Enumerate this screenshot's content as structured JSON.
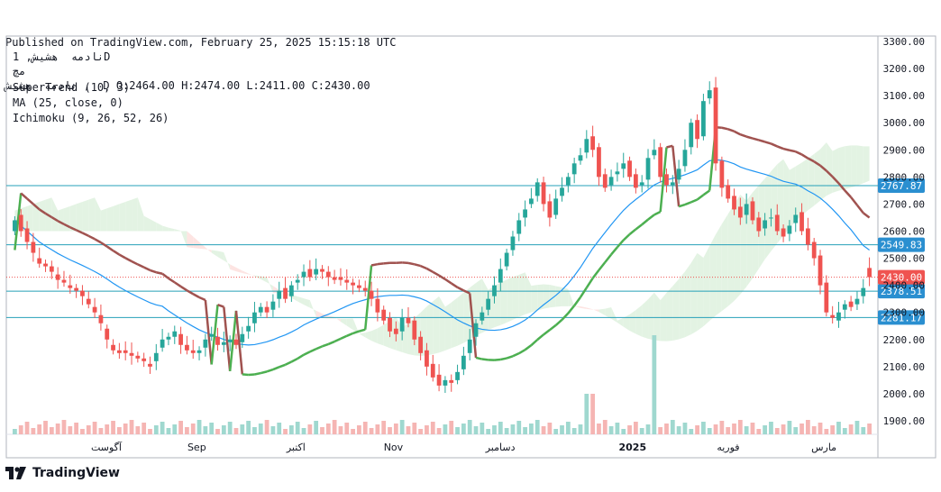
{
  "header": {
    "published": "Published on TradingView.com, February 25, 2025 15:15:18 UTC",
    "ohlc": "نادمه  هشیش ,  D O:2464.00 H:2474.00 L:2411.00 C:2430.00"
  },
  "legend": {
    "symbol": "نادمه  هشیش, 1D",
    "exchange": "مچ",
    "supertrend": "SuperTrend (10, 3)",
    "ma": "MA (25, close, 0)",
    "ichimoku": "Ichimoku (9, 26, 52, 26)"
  },
  "footer": {
    "brand": "TradingView"
  },
  "colors": {
    "up": "#26a69a",
    "down": "#ef5350",
    "st_up": "#4caf50",
    "st_down": "#a0524f",
    "ma": "#2196f3",
    "cloud_bull": "#e3f3e3",
    "cloud_bear": "#fde4e2",
    "hline": "#26a0b8",
    "last_price": "#ef5350"
  },
  "chart_data": {
    "type": "candlestick",
    "ylim": [
      1850,
      3320
    ],
    "y_ticks": [
      "3300.00",
      "3200.00",
      "3100.00",
      "3000.00",
      "2900.00",
      "2800.00",
      "2700.00",
      "2600.00",
      "2500.00",
      "2400.00",
      "2300.00",
      "2200.00",
      "2100.00",
      "2000.00",
      "1900.00"
    ],
    "x_labels": [
      {
        "label": "آگوست",
        "pos": 0.115
      },
      {
        "label": "Sep",
        "pos": 0.219
      },
      {
        "label": "اکتبر",
        "pos": 0.333
      },
      {
        "label": "Nov",
        "pos": 0.445
      },
      {
        "label": "دسامبر",
        "pos": 0.568
      },
      {
        "label": "2025",
        "pos": 0.72
      },
      {
        "label": "فوریه",
        "pos": 0.83
      },
      {
        "label": "مارس",
        "pos": 0.94
      }
    ],
    "horizontal_lines": [
      {
        "value": 2767.87,
        "label": "2767.87"
      },
      {
        "value": 2549.83,
        "label": "2549.83"
      },
      {
        "value": 2378.51,
        "label": "2378.51"
      },
      {
        "value": 2281.17,
        "label": "2281.17"
      }
    ],
    "last_price": {
      "value": 2430.0,
      "label": "2430.00"
    },
    "candles_close": [
      2640,
      2600,
      2560,
      2520,
      2480,
      2470,
      2450,
      2420,
      2410,
      2390,
      2380,
      2360,
      2330,
      2300,
      2260,
      2200,
      2160,
      2150,
      2150,
      2140,
      2130,
      2120,
      2100,
      2150,
      2200,
      2210,
      2230,
      2180,
      2160,
      2150,
      2160,
      2200,
      2220,
      2180,
      2190,
      2200,
      2180,
      2220,
      2250,
      2300,
      2320,
      2300,
      2340,
      2380,
      2350,
      2400,
      2420,
      2450,
      2430,
      2460,
      2450,
      2430,
      2420,
      2420,
      2410,
      2400,
      2390,
      2380,
      2350,
      2300,
      2270,
      2230,
      2220,
      2280,
      2260,
      2200,
      2150,
      2100,
      2060,
      2030,
      2050,
      2040,
      2080,
      2140,
      2200,
      2260,
      2300,
      2350,
      2400,
      2460,
      2520,
      2580,
      2640,
      2680,
      2720,
      2780,
      2700,
      2650,
      2720,
      2760,
      2800,
      2850,
      2880,
      2940,
      2900,
      2800,
      2760,
      2800,
      2820,
      2850,
      2800,
      2760,
      2780,
      2870,
      2900,
      2800,
      2770,
      2780,
      2830,
      2900,
      3000,
      2940,
      3080,
      3120,
      2850,
      2760,
      2720,
      2680,
      2650,
      2700,
      2640,
      2600,
      2640,
      2650,
      2600,
      2580,
      2620,
      2660,
      2600,
      2550,
      2500,
      2400,
      2300,
      2280,
      2300,
      2330,
      2320,
      2350,
      2390,
      2430
    ],
    "candles_open": [
      2600,
      2660,
      2610,
      2560,
      2500,
      2480,
      2470,
      2440,
      2420,
      2400,
      2390,
      2380,
      2350,
      2320,
      2290,
      2240,
      2180,
      2160,
      2160,
      2150,
      2140,
      2130,
      2110,
      2120,
      2170,
      2200,
      2210,
      2220,
      2180,
      2160,
      2150,
      2170,
      2210,
      2210,
      2180,
      2190,
      2200,
      2190,
      2230,
      2260,
      2300,
      2320,
      2310,
      2350,
      2390,
      2360,
      2410,
      2430,
      2460,
      2440,
      2460,
      2450,
      2430,
      2430,
      2420,
      2410,
      2400,
      2390,
      2380,
      2350,
      2310,
      2280,
      2240,
      2230,
      2280,
      2270,
      2210,
      2160,
      2110,
      2070,
      2030,
      2050,
      2050,
      2090,
      2150,
      2210,
      2270,
      2310,
      2360,
      2410,
      2470,
      2530,
      2590,
      2650,
      2700,
      2730,
      2780,
      2710,
      2660,
      2730,
      2770,
      2810,
      2860,
      2890,
      2950,
      2910,
      2810,
      2770,
      2810,
      2830,
      2860,
      2810,
      2770,
      2790,
      2880,
      2910,
      2810,
      2770,
      2790,
      2840,
      2910,
      3010,
      2950,
      3090,
      3130,
      2860,
      2770,
      2730,
      2690,
      2660,
      2710,
      2650,
      2610,
      2650,
      2660,
      2610,
      2590,
      2630,
      2670,
      2610,
      2560,
      2510,
      2410,
      2290,
      2270,
      2310,
      2340,
      2330,
      2360,
      2464
    ],
    "supertrend": [],
    "volume_scale": "relative"
  }
}
